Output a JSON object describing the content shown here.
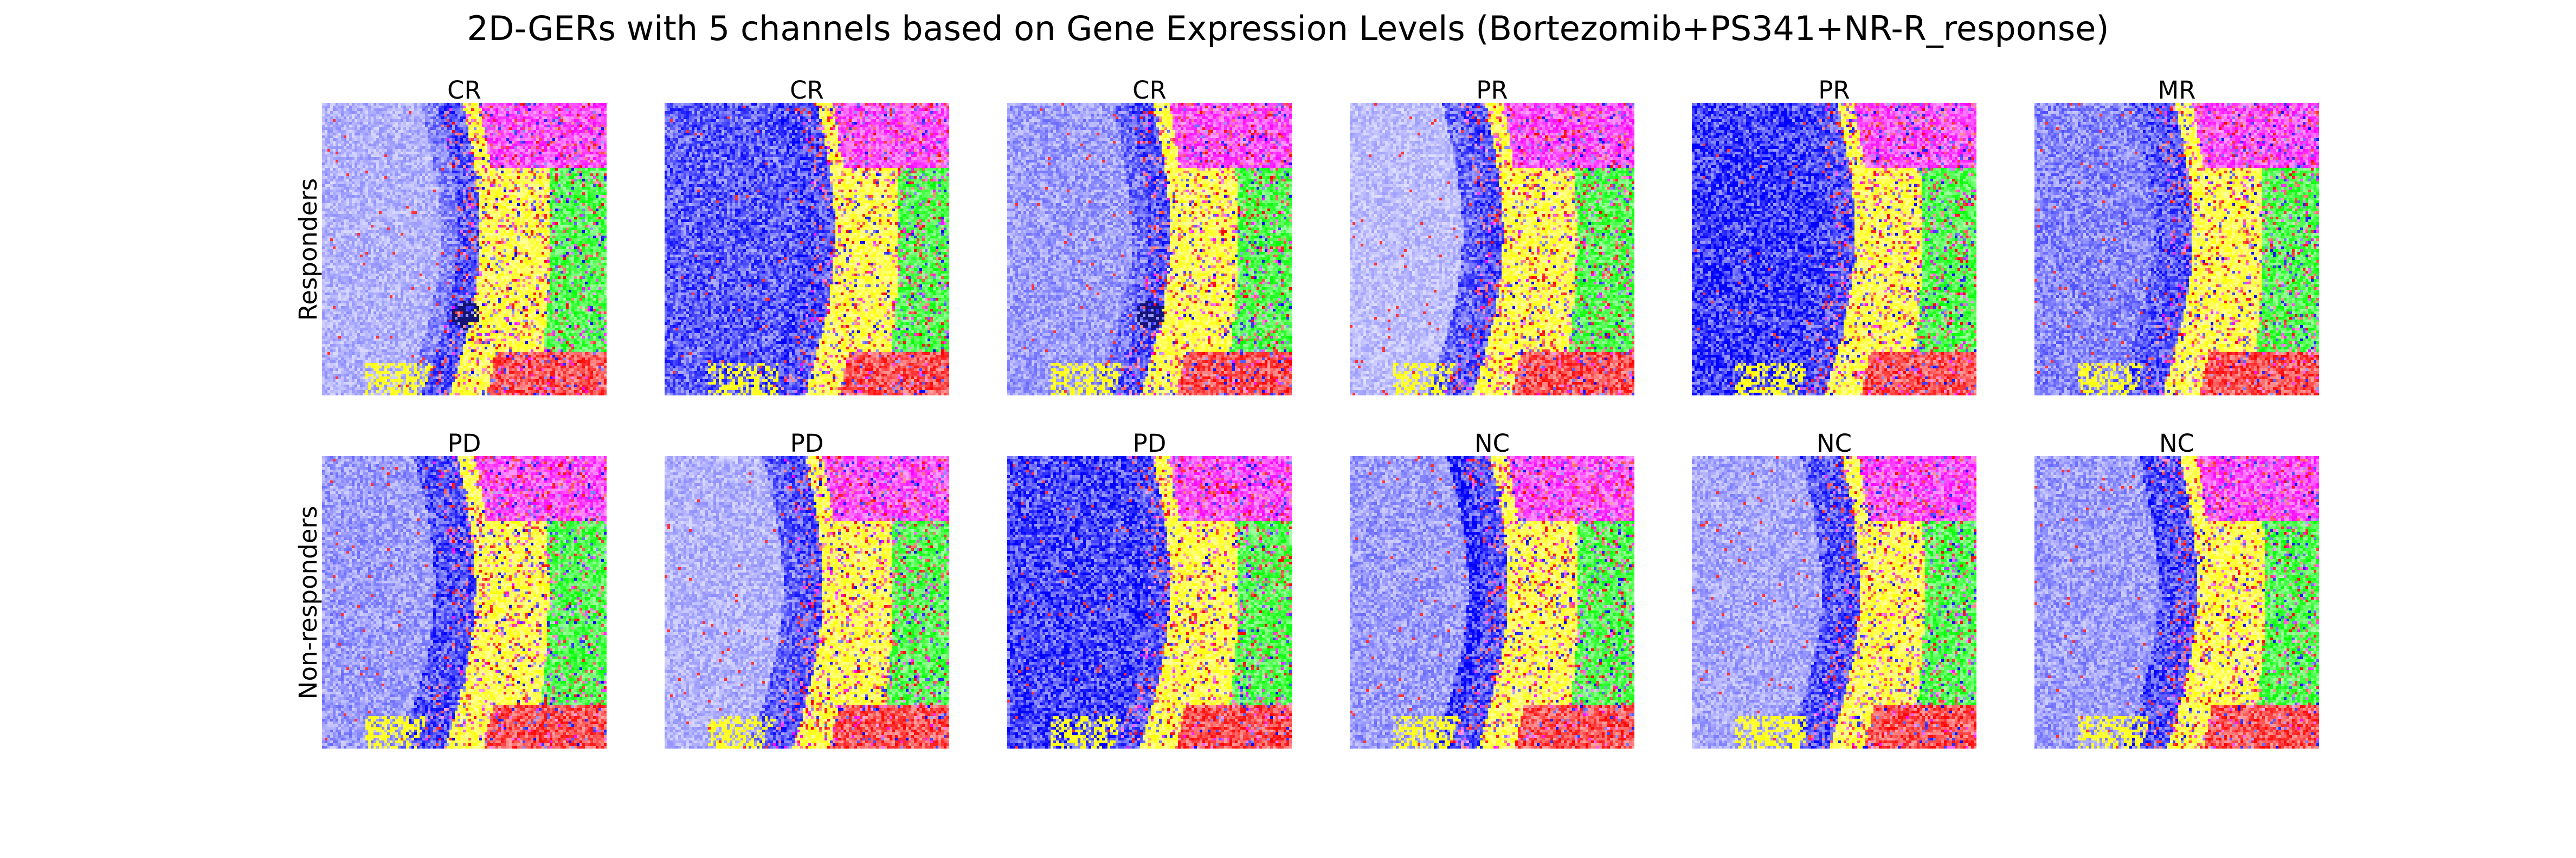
{
  "chart_data": {
    "type": "heatmap",
    "title": "2D-GERs with 5 channels based on Gene Expression Levels (Bortezomib+PS341+NR-R_response)",
    "rows": [
      {
        "label": "Responders",
        "panels": [
          "CR",
          "CR",
          "CR",
          "PR",
          "PR",
          "MR"
        ]
      },
      {
        "label": "Non-responders",
        "panels": [
          "PD",
          "PD",
          "PD",
          "NC",
          "NC",
          "NC"
        ]
      }
    ],
    "channel_colors": [
      "#0000ff",
      "#ffff00",
      "#00ff00",
      "#ff00ff",
      "#ff0000"
    ],
    "background": "#ffffff",
    "axes": "off"
  }
}
